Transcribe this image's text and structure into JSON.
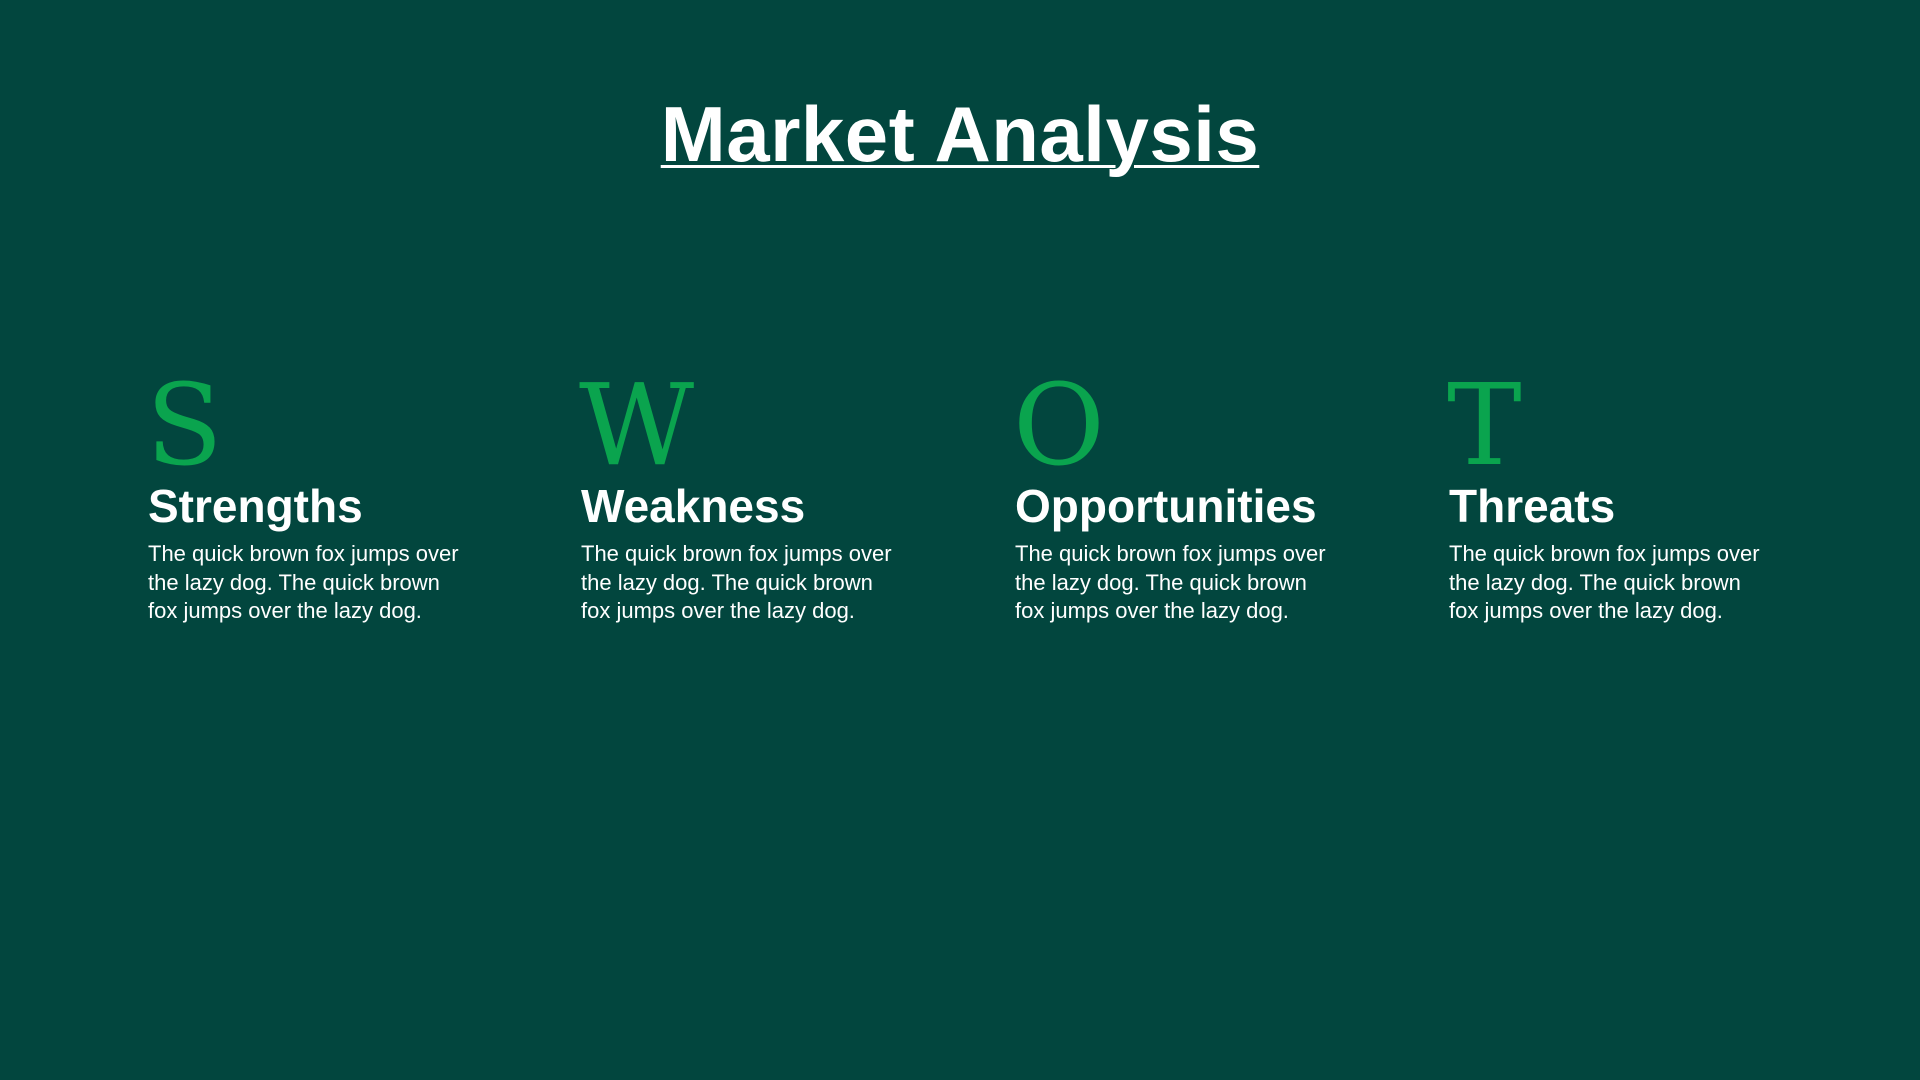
{
  "title": "Market Analysis",
  "colors": {
    "background": "#02463e",
    "accent": "#0aa44e",
    "text": "#ffffff"
  },
  "swot": [
    {
      "letter": "S",
      "heading": "Strengths",
      "body": "The quick brown fox jumps over the lazy dog. The quick brown fox jumps over the lazy dog."
    },
    {
      "letter": "W",
      "heading": "Weakness",
      "body": "The quick brown fox jumps over the lazy dog. The quick brown fox jumps over the lazy dog."
    },
    {
      "letter": "O",
      "heading": "Opportunities",
      "body": "The quick brown fox jumps over the lazy dog. The quick brown fox jumps over the lazy dog."
    },
    {
      "letter": "T",
      "heading": "Threats",
      "body": "The quick brown fox jumps over the lazy dog. The quick brown fox jumps over the lazy dog."
    }
  ]
}
